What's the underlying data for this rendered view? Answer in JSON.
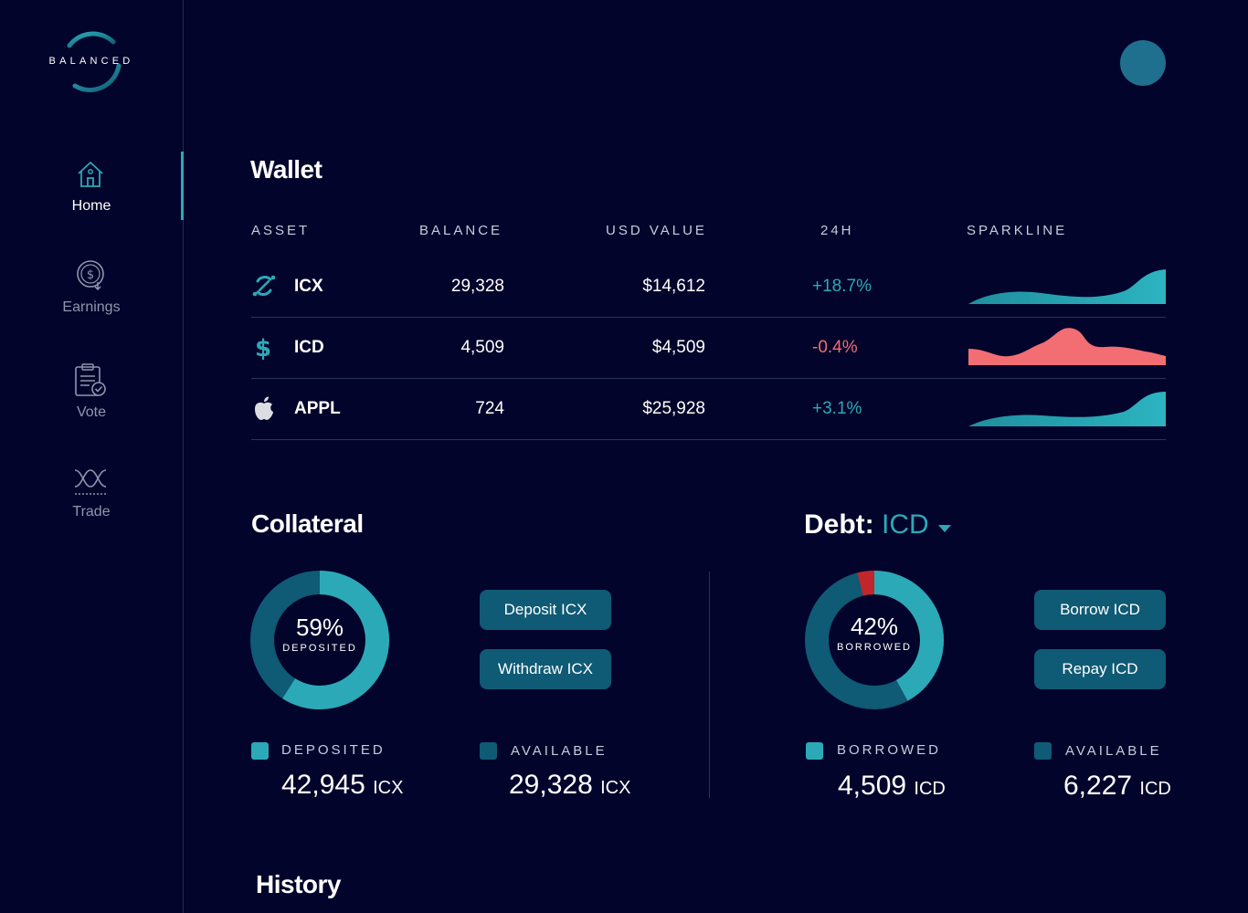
{
  "brand": {
    "name": "BALANCED"
  },
  "nav": [
    {
      "label": "Home",
      "icon": "home-icon",
      "active": true
    },
    {
      "label": "Earnings",
      "icon": "earnings-icon",
      "active": false
    },
    {
      "label": "Vote",
      "icon": "vote-icon",
      "active": false
    },
    {
      "label": "Trade",
      "icon": "trade-icon",
      "active": false
    }
  ],
  "wallet": {
    "title": "Wallet",
    "columns": [
      "ASSET",
      "BALANCE",
      "USD VALUE",
      "24H",
      "SPARKLINE"
    ],
    "rows": [
      {
        "symbol": "ICX",
        "icon": "icx-icon",
        "balance": "29,328",
        "usd": "$14,612",
        "change": "+18.7%",
        "trend": "up"
      },
      {
        "symbol": "ICD",
        "icon": "dollar-icon",
        "balance": "4,509",
        "usd": "$4,509",
        "change": "-0.4%",
        "trend": "down"
      },
      {
        "symbol": "APPL",
        "icon": "apple-icon",
        "balance": "724",
        "usd": "$25,928",
        "change": "+3.1%",
        "trend": "up"
      }
    ]
  },
  "collateral": {
    "title": "Collateral",
    "percent": "59%",
    "percent_value": 0.59,
    "caption": "DEPOSITED",
    "deposit_button": "Deposit ICX",
    "withdraw_button": "Withdraw ICX",
    "deposited_label": "DEPOSITED",
    "deposited_value": "42,945",
    "deposited_unit": "ICX",
    "available_label": "AVAILABLE",
    "available_value": "29,328",
    "available_unit": "ICX"
  },
  "debt": {
    "title": "Debt:",
    "currency": "ICD",
    "percent": "42%",
    "percent_value": 0.42,
    "caption": "BORROWED",
    "borrow_button": "Borrow ICD",
    "repay_button": "Repay ICD",
    "borrowed_label": "BORROWED",
    "borrowed_value": "4,509",
    "borrowed_unit": "ICD",
    "available_label": "AVAILABLE",
    "available_value": "6,227",
    "available_unit": "ICD"
  },
  "history": {
    "title": "History"
  },
  "colors": {
    "background": "#03042b",
    "accent": "#2ca9b7",
    "dark_teal": "#0f5a74",
    "positive": "#2ca9b7",
    "negative": "#f26e73",
    "danger": "#c0262b"
  }
}
